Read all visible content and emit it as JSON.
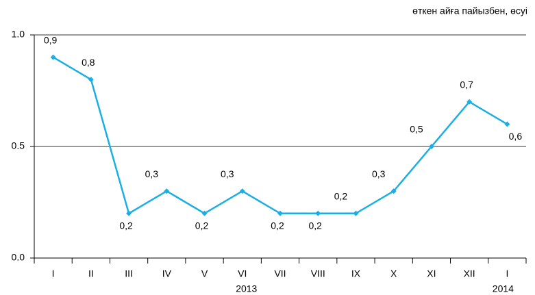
{
  "chart_data": {
    "type": "line",
    "annotation": "өткен айға пайызбен, өсуі",
    "categories": [
      "I",
      "II",
      "III",
      "IV",
      "V",
      "VI",
      "VII",
      "VIII",
      "IX",
      "X",
      "XI",
      "XII",
      "I"
    ],
    "values": [
      0.9,
      0.8,
      0.2,
      0.3,
      0.2,
      0.3,
      0.2,
      0.2,
      0.2,
      0.3,
      0.5,
      0.7,
      0.6
    ],
    "value_labels": [
      "0,9",
      "0,8",
      "0,2",
      "0,3",
      "0,2",
      "0,3",
      "0,2",
      "0,2",
      "0,2",
      "0,3",
      "0,5",
      "0,7",
      "0,6"
    ],
    "year_labels": [
      "2013",
      "2014"
    ],
    "color": "#1aaee5",
    "ylim": [
      0,
      1
    ],
    "yticks": [
      {
        "value": 0,
        "label": "0.0"
      },
      0.5,
      {
        "value": 1,
        "label": "1.0"
      }
    ],
    "grid": true
  }
}
